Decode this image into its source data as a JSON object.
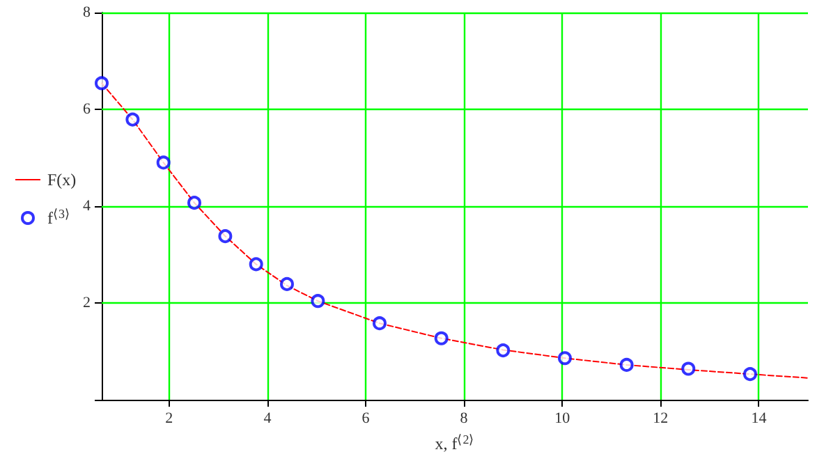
{
  "chart_data": {
    "type": "scatter",
    "xlabel": "x, f$^{⟨2⟩}$",
    "xlim": [
      0.628,
      15
    ],
    "xticks": [
      2,
      4,
      6,
      8,
      10,
      12,
      14
    ],
    "ylim": [
      0,
      8
    ],
    "yticks": [
      {
        "value": 0,
        "label": null
      },
      2,
      4,
      6,
      8
    ],
    "grid": true,
    "legend": "left",
    "series": [
      {
        "name": "F(x)",
        "type": "line",
        "color": "#ff0000",
        "marker": "none",
        "line_style": "dashed",
        "x": [
          0.628,
          1.257,
          1.885,
          2.513,
          3.142,
          3.77,
          4.398,
          5.027,
          6.283,
          7.54,
          8.796,
          10.053,
          11.31,
          12.566,
          13.823,
          15
        ],
        "values": [
          6.54,
          5.79,
          4.9,
          4.07,
          3.38,
          2.8,
          2.36,
          2.04,
          1.58,
          1.27,
          1.03,
          0.86,
          0.72,
          0.62,
          0.53,
          0.45
        ]
      },
      {
        "name": "f$^{⟨3⟩}$",
        "color": "#0000ff",
        "marker": "circle",
        "x": [
          0.628,
          1.257,
          1.885,
          2.513,
          3.142,
          3.77,
          4.398,
          5.027,
          6.283,
          7.54,
          8.796,
          10.053,
          11.31,
          12.566,
          13.823
        ],
        "values": [
          6.54,
          5.79,
          4.9,
          4.07,
          3.38,
          2.8,
          2.39,
          2.04,
          1.58,
          1.27,
          1.02,
          0.86,
          0.72,
          0.64,
          0.53
        ]
      }
    ]
  }
}
